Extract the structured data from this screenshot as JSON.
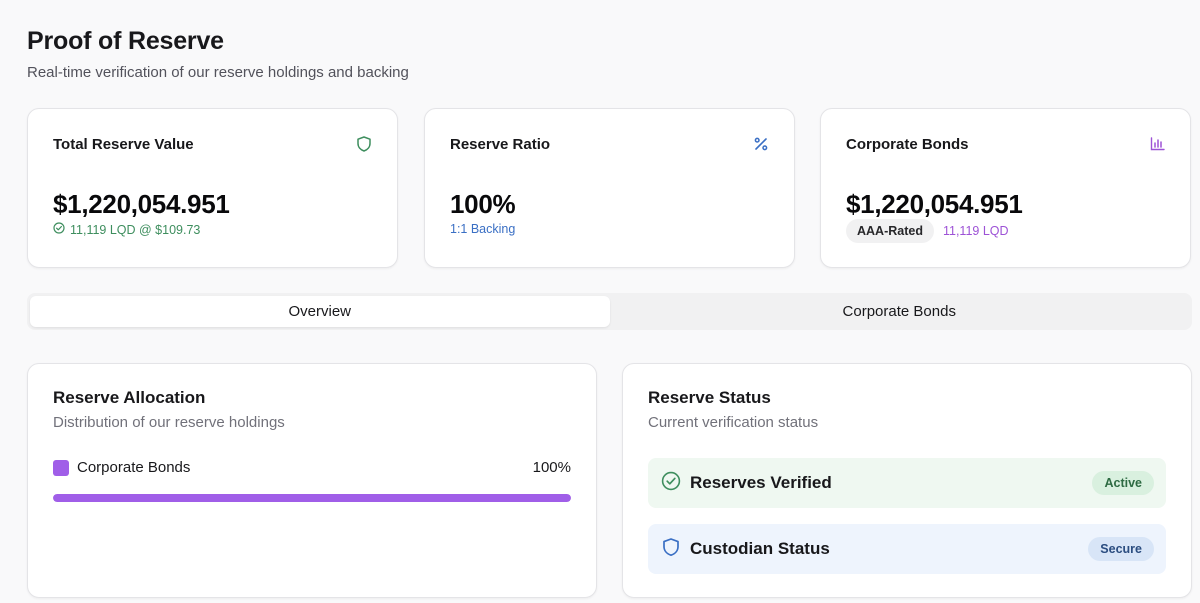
{
  "header": {
    "title": "Proof of Reserve",
    "subtitle": "Real-time verification of our reserve holdings and backing"
  },
  "stats": {
    "total": {
      "label": "Total Reserve Value",
      "icon": "shield-icon",
      "value": "$1,220,054.951",
      "sub": "11,119 LQD @ $109.73",
      "color": "#3e8e5e"
    },
    "ratio": {
      "label": "Reserve Ratio",
      "icon": "percent-icon",
      "value": "100%",
      "sub": "1:1 Backing",
      "color": "#3a6fc4"
    },
    "bonds": {
      "label": "Corporate Bonds",
      "icon": "bar-chart-icon",
      "value": "$1,220,054.951",
      "badge": "AAA-Rated",
      "sub": "11,119 LQD",
      "color": "#9d52d6"
    }
  },
  "tabs": [
    {
      "label": "Overview",
      "active": true
    },
    {
      "label": "Corporate Bonds",
      "active": false
    }
  ],
  "allocation": {
    "title": "Reserve Allocation",
    "description": "Distribution of our reserve holdings",
    "items": [
      {
        "label": "Corporate Bonds",
        "percent_label": "100%",
        "fraction": 1.0,
        "color": "#a05ee8"
      }
    ]
  },
  "status": {
    "title": "Reserve Status",
    "description": "Current verification status",
    "rows": [
      {
        "label": "Reserves Verified",
        "badge": "Active",
        "icon": "check-circle-icon",
        "bg": "#eff8f1",
        "badge_bg": "#d9f0df",
        "badge_color": "#2e6b43",
        "icon_color": "#3e8e5e"
      },
      {
        "label": "Custodian Status",
        "badge": "Secure",
        "icon": "shield-icon",
        "bg": "#eef4fd",
        "badge_bg": "#d8e5f7",
        "badge_color": "#2b4d80",
        "icon_color": "#3a6fc4"
      }
    ]
  }
}
